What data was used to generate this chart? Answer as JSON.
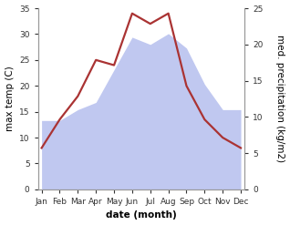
{
  "months": [
    "Jan",
    "Feb",
    "Mar",
    "Apr",
    "May",
    "Jun",
    "Jul",
    "Aug",
    "Sep",
    "Oct",
    "Nov",
    "Dec"
  ],
  "x": [
    0,
    1,
    2,
    3,
    4,
    5,
    6,
    7,
    8,
    9,
    10,
    11
  ],
  "temperature": [
    8.0,
    13.5,
    18.0,
    25.0,
    24.0,
    34.0,
    32.0,
    34.0,
    20.0,
    13.5,
    10.0,
    8.0
  ],
  "precipitation_kg": [
    9.5,
    9.5,
    11.0,
    12.0,
    16.5,
    21.0,
    20.0,
    21.5,
    19.5,
    14.5,
    11.0,
    11.0
  ],
  "temp_color": "#aa3333",
  "precip_fill_color": "#c0c8f0",
  "left_ylim": [
    0,
    35
  ],
  "right_ylim": [
    0,
    25
  ],
  "left_yticks": [
    0,
    5,
    10,
    15,
    20,
    25,
    30,
    35
  ],
  "right_yticks": [
    0,
    5,
    10,
    15,
    20,
    25
  ],
  "xlabel": "date (month)",
  "ylabel_left": "max temp (C)",
  "ylabel_right": "med. precipitation (kg/m2)",
  "bg_color": "#ffffff",
  "label_fontsize": 7.5,
  "tick_fontsize": 6.5,
  "linewidth": 1.6
}
